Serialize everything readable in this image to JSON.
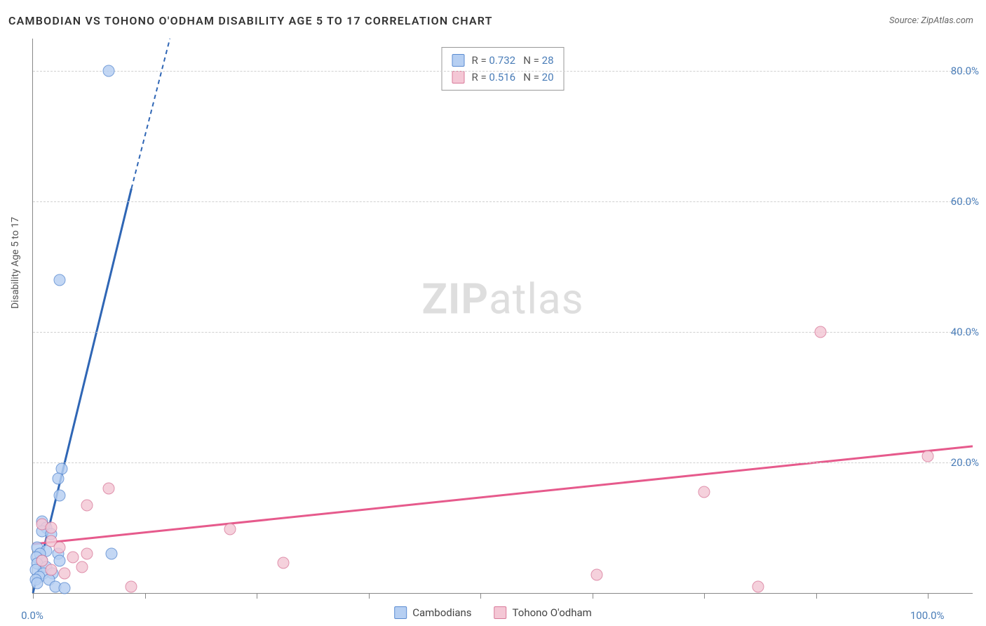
{
  "title": "CAMBODIAN VS TOHONO O'ODHAM DISABILITY AGE 5 TO 17 CORRELATION CHART",
  "source": "Source: ZipAtlas.com",
  "ylabel": "Disability Age 5 to 17",
  "watermark": {
    "bold": "ZIP",
    "light": "atlas"
  },
  "colors": {
    "blue_fill": "#b6cff2",
    "blue_stroke": "#5a8bd1",
    "pink_fill": "#f4c7d5",
    "pink_stroke": "#d97a9a",
    "blue_line": "#2f66b5",
    "pink_line": "#e65a8c",
    "axis_label": "#4a7db8"
  },
  "chart": {
    "type": "scatter",
    "xlim": [
      0,
      105
    ],
    "ylim": [
      0,
      85
    ],
    "xticks": [
      0,
      12.5,
      25,
      37.5,
      50,
      62.5,
      75,
      87.5,
      100
    ],
    "xtick_labels": {
      "0": "0.0%",
      "100": "100.0%"
    },
    "yticks_grid": [
      20,
      40,
      60,
      80
    ],
    "ytick_labels": {
      "20": "20.0%",
      "40": "40.0%",
      "60": "60.0%",
      "80": "80.0%"
    },
    "series": [
      {
        "name": "Cambodians",
        "color_fill_key": "blue_fill",
        "color_stroke_key": "blue_stroke",
        "stats": {
          "r": "0.732",
          "n": "28"
        },
        "trend": {
          "x1": 0,
          "y1": 0,
          "x2": 11,
          "y2": 62,
          "color_key": "blue_line",
          "dashed_from_x": 11,
          "extends_to": {
            "x": 15.3,
            "y": 85
          }
        },
        "points": [
          {
            "x": 8.5,
            "y": 80
          },
          {
            "x": 3,
            "y": 48
          },
          {
            "x": 3.2,
            "y": 19
          },
          {
            "x": 2.8,
            "y": 17.5
          },
          {
            "x": 3.0,
            "y": 15
          },
          {
            "x": 1,
            "y": 11
          },
          {
            "x": 1.5,
            "y": 10
          },
          {
            "x": 8.8,
            "y": 6
          },
          {
            "x": 1,
            "y": 9.5
          },
          {
            "x": 2,
            "y": 9
          },
          {
            "x": 0.5,
            "y": 7
          },
          {
            "x": 1.5,
            "y": 6.5
          },
          {
            "x": 0.8,
            "y": 6
          },
          {
            "x": 2.8,
            "y": 6
          },
          {
            "x": 0.4,
            "y": 5.5
          },
          {
            "x": 1.0,
            "y": 5
          },
          {
            "x": 3.0,
            "y": 5
          },
          {
            "x": 0.5,
            "y": 4.5
          },
          {
            "x": 1.5,
            "y": 4
          },
          {
            "x": 0.3,
            "y": 3.5
          },
          {
            "x": 1.2,
            "y": 3
          },
          {
            "x": 2.2,
            "y": 3
          },
          {
            "x": 0.7,
            "y": 2.5
          },
          {
            "x": 0.3,
            "y": 2
          },
          {
            "x": 1.8,
            "y": 2
          },
          {
            "x": 0.5,
            "y": 1.5
          },
          {
            "x": 2.5,
            "y": 1
          },
          {
            "x": 3.5,
            "y": 0.8
          }
        ]
      },
      {
        "name": "Tohono O'odham",
        "color_fill_key": "pink_fill",
        "color_stroke_key": "pink_stroke",
        "stats": {
          "r": "0.516",
          "n": "20"
        },
        "trend": {
          "x1": 0,
          "y1": 7.5,
          "x2": 105,
          "y2": 22.5,
          "color_key": "pink_line"
        },
        "points": [
          {
            "x": 100,
            "y": 21
          },
          {
            "x": 88,
            "y": 40
          },
          {
            "x": 75,
            "y": 15.5
          },
          {
            "x": 81,
            "y": 1
          },
          {
            "x": 63,
            "y": 2.8
          },
          {
            "x": 28,
            "y": 4.6
          },
          {
            "x": 22,
            "y": 9.8
          },
          {
            "x": 11,
            "y": 1
          },
          {
            "x": 8.5,
            "y": 16
          },
          {
            "x": 6,
            "y": 13.5
          },
          {
            "x": 1,
            "y": 10.5
          },
          {
            "x": 2,
            "y": 10
          },
          {
            "x": 6,
            "y": 6
          },
          {
            "x": 2,
            "y": 8
          },
          {
            "x": 3,
            "y": 7
          },
          {
            "x": 4.5,
            "y": 5.5
          },
          {
            "x": 1,
            "y": 5
          },
          {
            "x": 5.5,
            "y": 4
          },
          {
            "x": 2,
            "y": 3.5
          },
          {
            "x": 3.5,
            "y": 3
          }
        ]
      }
    ]
  },
  "legend_bottom": [
    {
      "label": "Cambodians",
      "fill_key": "blue_fill",
      "stroke_key": "blue_stroke"
    },
    {
      "label": "Tohono O'odham",
      "fill_key": "pink_fill",
      "stroke_key": "pink_stroke"
    }
  ]
}
